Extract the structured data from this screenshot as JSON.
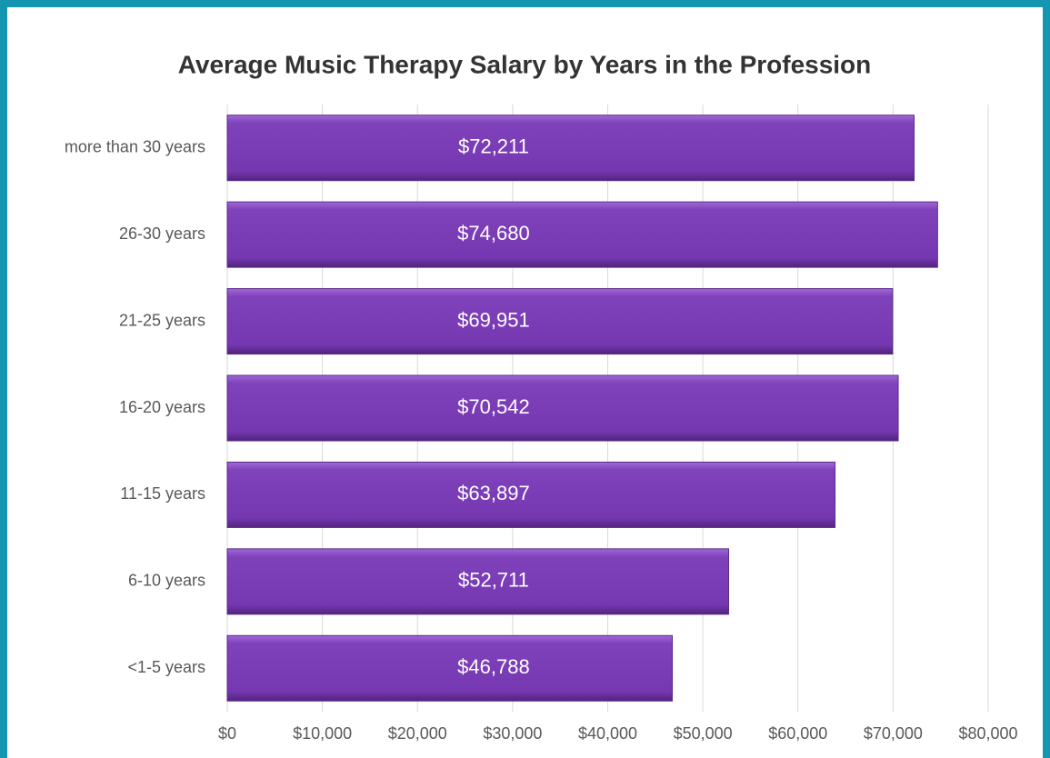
{
  "chart_data": {
    "type": "bar",
    "orientation": "horizontal",
    "title": "Average Music Therapy Salary by Years in the Profession",
    "categories": [
      "more than 30 years",
      "26-30 years",
      "21-25 years",
      "16-20 years",
      "11-15 years",
      "6-10 years",
      "<1-5 years"
    ],
    "values": [
      72211,
      74680,
      69951,
      70542,
      63897,
      52711,
      46788
    ],
    "value_labels": [
      "$72,211",
      "$74,680",
      "$69,951",
      "$70,542",
      "$63,897",
      "$52,711",
      "$46,788"
    ],
    "color": "#7a3db3",
    "xlim": [
      0,
      80000
    ],
    "xticks": [
      {
        "value": 0,
        "label": "$0"
      },
      {
        "value": 10000,
        "label": "$10,000"
      },
      {
        "value": 20000,
        "label": "$20,000"
      },
      {
        "value": 30000,
        "label": "$30,000"
      },
      {
        "value": 40000,
        "label": "$40,000"
      },
      {
        "value": 50000,
        "label": "$50,000"
      },
      {
        "value": 60000,
        "label": "$60,000"
      },
      {
        "value": 70000,
        "label": "$70,000"
      },
      {
        "value": 80000,
        "label": "$80,000"
      }
    ],
    "grid": true
  }
}
